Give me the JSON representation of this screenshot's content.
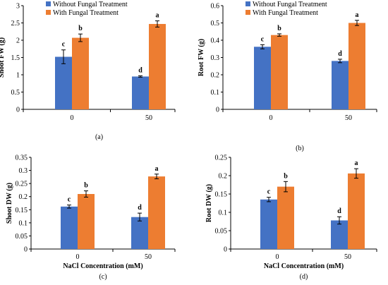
{
  "colors": {
    "without": "#4472C4",
    "with": "#ED7D31",
    "axis": "#000000",
    "error": "#000000"
  },
  "legend_labels": [
    "Without Fungal Treatment",
    "With Fungal Treatment"
  ],
  "x_axis_title": "NaCl Concentration (mM)",
  "chart_data": [
    {
      "type": "bar",
      "panel_label": "(a)",
      "ylabel": "Shoot FW (g)",
      "xlabel": "",
      "categories": [
        "0",
        "50"
      ],
      "ylim": [
        0,
        3
      ],
      "yticks": [
        "0",
        "0.5",
        "1",
        "1.5",
        "2",
        "2.5",
        "3"
      ],
      "legend": "top-left",
      "grid": false,
      "series": [
        {
          "name": "Without Fungal Treatment",
          "values": [
            1.52,
            0.95
          ],
          "errors": [
            0.2,
            0.02
          ],
          "letters": [
            "c",
            "d"
          ]
        },
        {
          "name": "With Fungal Treatment",
          "values": [
            2.07,
            2.47
          ],
          "errors": [
            0.11,
            0.09
          ],
          "letters": [
            "b",
            "a"
          ]
        }
      ]
    },
    {
      "type": "bar",
      "panel_label": "(b)",
      "ylabel": "Root FW (g)",
      "xlabel": "",
      "categories": [
        "0",
        "50"
      ],
      "ylim": [
        0,
        0.6
      ],
      "yticks": [
        "0",
        "0.1",
        "0.2",
        "0.3",
        "0.4",
        "0.5",
        "0.6"
      ],
      "legend": "top-left",
      "grid": false,
      "series": [
        {
          "name": "Without Fungal Treatment",
          "values": [
            0.362,
            0.28
          ],
          "errors": [
            0.012,
            0.01
          ],
          "letters": [
            "c",
            "d"
          ]
        },
        {
          "name": "With Fungal Treatment",
          "values": [
            0.43,
            0.5
          ],
          "errors": [
            0.007,
            0.015
          ],
          "letters": [
            "b",
            "a"
          ]
        }
      ]
    },
    {
      "type": "bar",
      "panel_label": "(c)",
      "ylabel": "Shoot DW (g)",
      "xlabel": "NaCl Concentration (mM)",
      "categories": [
        "0",
        "50"
      ],
      "ylim": [
        0,
        0.35
      ],
      "yticks": [
        "0",
        "0.05",
        "0.1",
        "0.15",
        "0.2",
        "0.25",
        "0.3",
        "0.35"
      ],
      "legend": "none",
      "grid": false,
      "series": [
        {
          "name": "Without Fungal Treatment",
          "values": [
            0.162,
            0.122
          ],
          "errors": [
            0.006,
            0.015
          ],
          "letters": [
            "c",
            "d"
          ]
        },
        {
          "name": "With Fungal Treatment",
          "values": [
            0.21,
            0.277
          ],
          "errors": [
            0.012,
            0.009
          ],
          "letters": [
            "b",
            "a"
          ]
        }
      ]
    },
    {
      "type": "bar",
      "panel_label": "(d)",
      "ylabel": "Root DW (g)",
      "xlabel": "NaCl Concentration (mM)",
      "categories": [
        "0",
        "50"
      ],
      "ylim": [
        0,
        0.25
      ],
      "yticks": [
        "0",
        "0.05",
        "0.1",
        "0.15",
        "0.2",
        "0.25"
      ],
      "legend": "none",
      "grid": false,
      "series": [
        {
          "name": "Without Fungal Treatment",
          "values": [
            0.135,
            0.078
          ],
          "errors": [
            0.006,
            0.01
          ],
          "letters": [
            "c",
            "d"
          ]
        },
        {
          "name": "With Fungal Treatment",
          "values": [
            0.17,
            0.206
          ],
          "errors": [
            0.014,
            0.013
          ],
          "letters": [
            "b",
            "a"
          ]
        }
      ]
    }
  ]
}
